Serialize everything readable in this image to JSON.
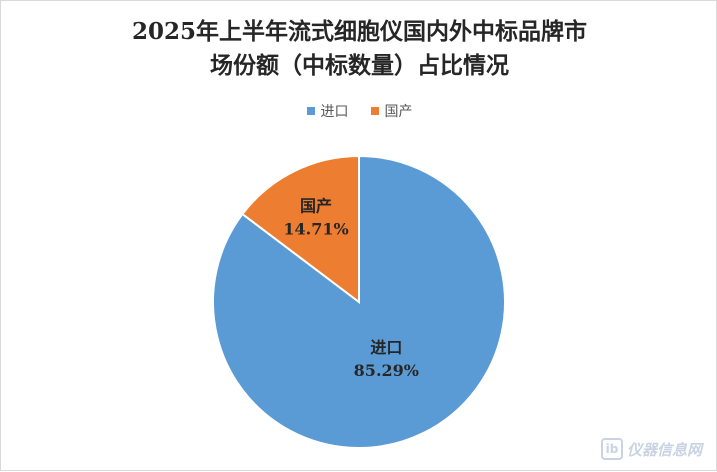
{
  "chart_data": {
    "type": "pie",
    "title_line1": "2025年上半年流式细胞仪国内外中标品牌市",
    "title_line2": "场份额（中标数量）占比情况",
    "legend_position": "top",
    "categories": [
      "进口",
      "国产"
    ],
    "values": [
      85.29,
      14.71
    ],
    "value_labels": [
      "85.29%",
      "14.71%"
    ],
    "colors": [
      "#5b9bd5",
      "#ed7d31"
    ]
  },
  "watermark": {
    "text": "仪器信息网",
    "logo": "ib"
  }
}
